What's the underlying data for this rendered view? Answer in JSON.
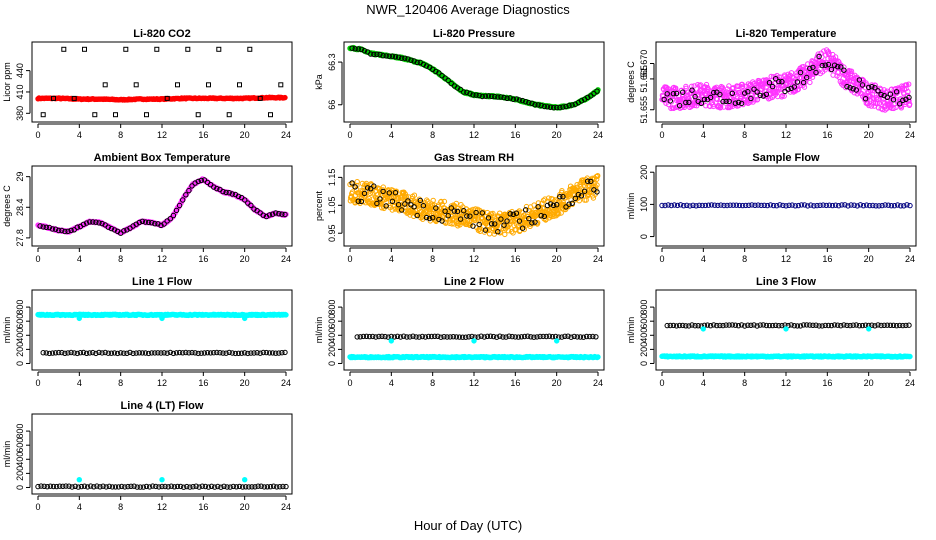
{
  "title": "NWR_120406  Average Diagnostics",
  "xlabel": "Hour of Day (UTC)",
  "chart_data": [
    {
      "type": "scatter",
      "title": "Li-820 CO2",
      "ylabel": "Licor ppm",
      "xlim": [
        0,
        24
      ],
      "ylim": [
        372,
        476
      ],
      "xticks": [
        0,
        4,
        8,
        12,
        16,
        20,
        24
      ],
      "yticks": [
        380,
        410,
        440
      ],
      "series": [
        {
          "color": "#ff0000",
          "kind": "dense",
          "x_range": [
            0,
            24
          ],
          "values": [
            401,
            401,
            400,
            400,
            399,
            400,
            400,
            401,
            401,
            401,
            401,
            402,
            402
          ]
        },
        {
          "color": "#000000",
          "kind": "points",
          "x": [
            0.5,
            1.5,
            2.5,
            3.5,
            4.5,
            5.5,
            6.5,
            7.5,
            8.5,
            9.5,
            10.5,
            11.5,
            12.5,
            13.5,
            14.5,
            15.5,
            16.5,
            17.5,
            18.5,
            19.5,
            20.5,
            21.5,
            22.5,
            23.5
          ],
          "y": [
            378,
            401,
            470,
            401,
            470,
            378,
            420,
            378,
            470,
            420,
            378,
            470,
            401,
            420,
            470,
            378,
            420,
            470,
            378,
            420,
            470,
            401,
            378,
            420
          ]
        }
      ]
    },
    {
      "type": "scatter",
      "title": "Li-820 Pressure",
      "ylabel": "kPa",
      "xlim": [
        0,
        24
      ],
      "ylim": [
        65.9,
        66.42
      ],
      "xticks": [
        0,
        4,
        8,
        12,
        16,
        20,
        24
      ],
      "yticks": [
        66.0,
        66.3
      ],
      "series": [
        {
          "color": "#00cc00",
          "kind": "line",
          "x": [
            0,
            1,
            2,
            3,
            4,
            5,
            6,
            7,
            8,
            9,
            10,
            11,
            12,
            13,
            14,
            15,
            16,
            17,
            18,
            19,
            20,
            21,
            22,
            23,
            24
          ],
          "y": [
            66.4,
            66.39,
            66.36,
            66.35,
            66.34,
            66.33,
            66.31,
            66.29,
            66.25,
            66.2,
            66.14,
            66.09,
            66.07,
            66.06,
            66.06,
            66.05,
            66.04,
            66.02,
            66.0,
            65.99,
            65.98,
            65.99,
            66.01,
            66.05,
            66.1
          ]
        }
      ]
    },
    {
      "type": "scatter",
      "title": "Li-820 Temperature",
      "ylabel": "degrees C",
      "xlim": [
        0,
        24
      ],
      "ylim": [
        51.652,
        51.676
      ],
      "xticks": [
        0,
        4,
        8,
        12,
        16,
        20,
        24
      ],
      "yticks": [
        51.655,
        51.665,
        51.67
      ],
      "ytick_labels": [
        "51.655",
        "51.665",
        "51.670"
      ],
      "series": [
        {
          "color": "#ff33ff",
          "kind": "noisy",
          "x": [
            0,
            2,
            4,
            6,
            8,
            10,
            12,
            14,
            15,
            16,
            18,
            20,
            22,
            24
          ],
          "y": [
            51.659,
            51.659,
            51.66,
            51.659,
            51.66,
            51.662,
            51.663,
            51.666,
            51.67,
            51.671,
            51.665,
            51.66,
            51.658,
            51.66
          ]
        }
      ]
    },
    {
      "type": "scatter",
      "title": "Ambient Box Temperature",
      "ylabel": "degrees C",
      "xlim": [
        0,
        24
      ],
      "ylim": [
        27.7,
        29.15
      ],
      "xticks": [
        0,
        4,
        8,
        12,
        16,
        20,
        24
      ],
      "yticks": [
        27.8,
        28.4,
        29.0
      ],
      "series": [
        {
          "color": "#ff33ff",
          "kind": "line",
          "x": [
            0,
            1,
            2,
            3,
            4,
            5,
            6,
            7,
            8,
            9,
            10,
            11,
            12,
            13,
            14,
            15,
            16,
            17,
            18,
            19,
            20,
            21,
            22,
            23,
            24
          ],
          "y": [
            28.05,
            28.0,
            27.95,
            27.92,
            28.02,
            28.12,
            28.1,
            28.0,
            27.9,
            28.0,
            28.12,
            28.1,
            28.05,
            28.2,
            28.55,
            28.85,
            28.95,
            28.8,
            28.7,
            28.65,
            28.55,
            28.35,
            28.22,
            28.28,
            28.25
          ]
        }
      ]
    },
    {
      "type": "scatter",
      "title": "Gas Stream RH",
      "ylabel": "percent",
      "xlim": [
        0,
        24
      ],
      "ylim": [
        0.915,
        1.18
      ],
      "xticks": [
        0,
        4,
        8,
        12,
        16,
        20,
        24
      ],
      "yticks": [
        0.95,
        1.05,
        1.15
      ],
      "series": [
        {
          "color": "#ffaa00",
          "kind": "noisy",
          "x": [
            0,
            2,
            4,
            6,
            8,
            10,
            12,
            14,
            16,
            18,
            20,
            22,
            24
          ],
          "y": [
            1.1,
            1.09,
            1.07,
            1.05,
            1.03,
            1.02,
            1.0,
            0.98,
            0.99,
            1.02,
            1.05,
            1.1,
            1.12
          ]
        }
      ]
    },
    {
      "type": "scatter",
      "title": "Sample Flow",
      "ylabel": "ml/min",
      "xlim": [
        0,
        24
      ],
      "ylim": [
        -20,
        210
      ],
      "xticks": [
        0,
        4,
        8,
        12,
        16,
        20,
        24
      ],
      "yticks": [
        0,
        100,
        200
      ],
      "series": [
        {
          "color": "#000080",
          "kind": "flat",
          "x_range": [
            0,
            24
          ],
          "values": [
            97
          ]
        }
      ]
    },
    {
      "type": "scatter",
      "title": "Line 1 Flow",
      "ylabel": "ml/min",
      "xlim": [
        0,
        24
      ],
      "ylim": [
        -50,
        1000
      ],
      "xticks": [
        0,
        4,
        8,
        12,
        16,
        20,
        24
      ],
      "yticks": [
        0,
        200,
        400,
        600,
        800
      ],
      "series": [
        {
          "color": "#00ffff",
          "kind": "flat",
          "x_range": [
            0,
            24
          ],
          "values": [
            690
          ],
          "dips": [
            4,
            12,
            20
          ],
          "dip_value": 640
        },
        {
          "color": "#000000",
          "kind": "flat",
          "x_range": [
            0.5,
            24
          ],
          "values": [
            150
          ]
        }
      ]
    },
    {
      "type": "scatter",
      "title": "Line 2 Flow",
      "ylabel": "ml/min",
      "xlim": [
        0,
        24
      ],
      "ylim": [
        -50,
        1000
      ],
      "xticks": [
        0,
        4,
        8,
        12,
        16,
        20,
        24
      ],
      "yticks": [
        0,
        200,
        400,
        600,
        800
      ],
      "series": [
        {
          "color": "#00ffff",
          "kind": "flat",
          "x_range": [
            0,
            24
          ],
          "values": [
            90
          ]
        },
        {
          "color": "#000000",
          "kind": "flat",
          "x_range": [
            0.7,
            24
          ],
          "values": [
            380
          ],
          "dips": [
            4,
            12,
            20
          ],
          "dip_value": 320,
          "dip_color": "#00ffff"
        }
      ]
    },
    {
      "type": "scatter",
      "title": "Line 3 Flow",
      "ylabel": "ml/min",
      "xlim": [
        0,
        24
      ],
      "ylim": [
        -50,
        1000
      ],
      "xticks": [
        0,
        4,
        8,
        12,
        16,
        20,
        24
      ],
      "yticks": [
        0,
        200,
        400,
        600,
        800
      ],
      "series": [
        {
          "color": "#00ffff",
          "kind": "flat",
          "x_range": [
            0,
            24
          ],
          "values": [
            100
          ]
        },
        {
          "color": "#000000",
          "kind": "flat",
          "x_range": [
            0.5,
            24
          ],
          "values": [
            540
          ],
          "dips": [
            4,
            12,
            20
          ],
          "dip_value": 490,
          "dip_color": "#00ffff"
        }
      ]
    },
    {
      "type": "scatter",
      "title": "Line 4 (LT) Flow",
      "ylabel": "ml/min",
      "xlim": [
        0,
        24
      ],
      "ylim": [
        -50,
        1000
      ],
      "xticks": [
        0,
        4,
        8,
        12,
        16,
        20,
        24
      ],
      "yticks": [
        0,
        200,
        400,
        600,
        800
      ],
      "series": [
        {
          "color": "#000000",
          "kind": "flat",
          "x_range": [
            0,
            24
          ],
          "values": [
            12
          ],
          "dips": [
            4,
            12,
            20
          ],
          "dip_value": 110,
          "dip_color": "#00ffff"
        }
      ]
    }
  ]
}
